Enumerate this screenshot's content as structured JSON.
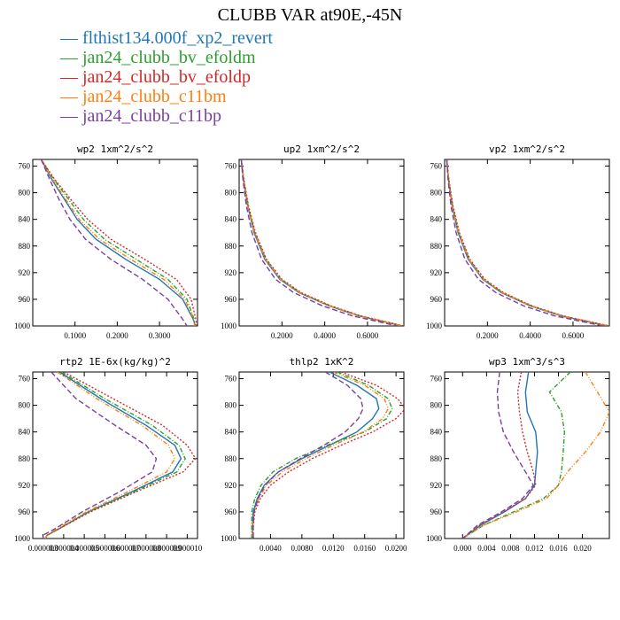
{
  "figure": {
    "title": "CLUBB VAR at90E,-45N",
    "legend": [
      {
        "label": "flthist134.000f_xp2_revert",
        "color": "#1f77b4"
      },
      {
        "label": "jan24_clubb_bv_efoldm",
        "color": "#2ca02c"
      },
      {
        "label": "jan24_clubb_bv_efoldp",
        "color": "#d62728"
      },
      {
        "label": "jan24_clubb_c11bm",
        "color": "#ff7f0e"
      },
      {
        "label": "jan24_clubb_c11bp",
        "color": "#7b3fa0"
      }
    ]
  },
  "chart_data": [
    {
      "type": "line",
      "title": "wp2  1xm^2/s^2",
      "xlim": [
        0.0,
        0.39
      ],
      "ylim": [
        1000,
        750
      ],
      "xticks": [
        "0.1000",
        "0.2000",
        "0.3000"
      ],
      "xtick_values": [
        0.1,
        0.2,
        0.3
      ],
      "yticks": [
        "760",
        "800",
        "840",
        "880",
        "920",
        "960",
        "1000"
      ],
      "y": [
        750,
        780,
        810,
        840,
        870,
        900,
        930,
        960,
        990,
        1000
      ],
      "series": [
        {
          "name": "flthist134.000f_xp2_revert",
          "color": "#1f77b4",
          "values": [
            0.02,
            0.045,
            0.075,
            0.105,
            0.15,
            0.22,
            0.3,
            0.355,
            0.38,
            0.385
          ]
        },
        {
          "name": "jan24_clubb_bv_efoldm",
          "color": "#2ca02c",
          "values": [
            0.02,
            0.05,
            0.085,
            0.12,
            0.17,
            0.245,
            0.32,
            0.365,
            0.382,
            0.384
          ]
        },
        {
          "name": "jan24_clubb_bv_efoldp",
          "color": "#d62728",
          "values": [
            0.02,
            0.052,
            0.09,
            0.13,
            0.185,
            0.265,
            0.34,
            0.375,
            0.386,
            0.388
          ]
        },
        {
          "name": "jan24_clubb_c11bm",
          "color": "#ff7f0e",
          "values": [
            0.02,
            0.047,
            0.078,
            0.11,
            0.158,
            0.232,
            0.31,
            0.36,
            0.381,
            0.383
          ]
        },
        {
          "name": "jan24_clubb_c11bp",
          "color": "#7b3fa0",
          "values": [
            0.02,
            0.04,
            0.062,
            0.088,
            0.125,
            0.185,
            0.26,
            0.32,
            0.355,
            0.365
          ]
        }
      ]
    },
    {
      "type": "line",
      "title": "up2  1xm^2/s^2",
      "xlim": [
        0.0,
        0.77
      ],
      "ylim": [
        1000,
        750
      ],
      "xticks": [
        "0.2000",
        "0.4000",
        "0.6000"
      ],
      "xtick_values": [
        0.2,
        0.4,
        0.6
      ],
      "yticks": [
        "760",
        "800",
        "840",
        "880",
        "920",
        "960",
        "1000"
      ],
      "y": [
        750,
        780,
        820,
        860,
        900,
        930,
        950,
        970,
        985,
        1000
      ],
      "series": [
        {
          "name": "flthist134.000f_xp2_revert",
          "color": "#1f77b4",
          "values": [
            0.01,
            0.02,
            0.04,
            0.07,
            0.12,
            0.19,
            0.28,
            0.42,
            0.56,
            0.76
          ]
        },
        {
          "name": "jan24_clubb_bv_efoldm",
          "color": "#2ca02c",
          "values": [
            0.01,
            0.021,
            0.042,
            0.073,
            0.125,
            0.195,
            0.285,
            0.425,
            0.565,
            0.765
          ]
        },
        {
          "name": "jan24_clubb_bv_efoldp",
          "color": "#d62728",
          "values": [
            0.01,
            0.022,
            0.044,
            0.076,
            0.128,
            0.2,
            0.29,
            0.43,
            0.57,
            0.77
          ]
        },
        {
          "name": "jan24_clubb_c11bm",
          "color": "#ff7f0e",
          "values": [
            0.01,
            0.021,
            0.041,
            0.072,
            0.122,
            0.193,
            0.283,
            0.422,
            0.562,
            0.762
          ]
        },
        {
          "name": "jan24_clubb_c11bp",
          "color": "#7b3fa0",
          "values": [
            0.01,
            0.018,
            0.034,
            0.06,
            0.105,
            0.17,
            0.255,
            0.39,
            0.53,
            0.74
          ]
        }
      ]
    },
    {
      "type": "line",
      "title": "vp2  1xm^2/s^2",
      "xlim": [
        0.0,
        0.77
      ],
      "ylim": [
        1000,
        750
      ],
      "xticks": [
        "0.2000",
        "0.4000",
        "0.6000"
      ],
      "xtick_values": [
        0.2,
        0.4,
        0.6
      ],
      "yticks": [
        "760",
        "800",
        "840",
        "880",
        "920",
        "960",
        "1000"
      ],
      "y": [
        750,
        780,
        820,
        860,
        900,
        930,
        950,
        970,
        985,
        1000
      ],
      "series": [
        {
          "name": "flthist134.000f_xp2_revert",
          "color": "#1f77b4",
          "values": [
            0.01,
            0.018,
            0.035,
            0.063,
            0.11,
            0.178,
            0.265,
            0.4,
            0.545,
            0.76
          ]
        },
        {
          "name": "jan24_clubb_bv_efoldm",
          "color": "#2ca02c",
          "values": [
            0.01,
            0.019,
            0.037,
            0.066,
            0.115,
            0.183,
            0.27,
            0.405,
            0.55,
            0.765
          ]
        },
        {
          "name": "jan24_clubb_bv_efoldp",
          "color": "#d62728",
          "values": [
            0.01,
            0.02,
            0.039,
            0.069,
            0.118,
            0.188,
            0.275,
            0.41,
            0.555,
            0.77
          ]
        },
        {
          "name": "jan24_clubb_c11bm",
          "color": "#ff7f0e",
          "values": [
            0.01,
            0.019,
            0.036,
            0.065,
            0.112,
            0.181,
            0.268,
            0.403,
            0.548,
            0.762
          ]
        },
        {
          "name": "jan24_clubb_c11bp",
          "color": "#7b3fa0",
          "values": [
            0.01,
            0.016,
            0.03,
            0.054,
            0.095,
            0.158,
            0.24,
            0.37,
            0.515,
            0.74
          ]
        }
      ]
    },
    {
      "type": "line",
      "title": "rtp2  1E-6x(kg/kg)^2",
      "xlim": [
        2.5e-06,
        1.05e-05
      ],
      "ylim": [
        1000,
        750
      ],
      "xticks": [
        "0.000003",
        "0.000004",
        "0.000005",
        "0.000006",
        "0.000007",
        "0.000008",
        "0.000009",
        "0.000010"
      ],
      "xtick_values": [
        3e-06,
        4e-06,
        5e-06,
        6e-06,
        7e-06,
        8e-06,
        9e-06,
        1e-05
      ],
      "yticks": [
        "760",
        "800",
        "840",
        "880",
        "920",
        "960",
        "1000"
      ],
      "y": [
        750,
        790,
        830,
        860,
        880,
        900,
        930,
        960,
        985,
        995,
        1000
      ],
      "series": [
        {
          "name": "flthist134.000f_xp2_revert",
          "color": "#1f77b4",
          "values": [
            3.8e-06,
            5.8e-06,
            8e-06,
            9.4e-06,
            9.7e-06,
            9.3e-06,
            7.3e-06,
            5.2e-06,
            3.8e-06,
            3.2e-06,
            3.1e-06
          ]
        },
        {
          "name": "jan24_clubb_bv_efoldm",
          "color": "#2ca02c",
          "values": [
            3.9e-06,
            6e-06,
            8.3e-06,
            9.6e-06,
            9.9e-06,
            9.5e-06,
            7.4e-06,
            5.2e-06,
            3.8e-06,
            3.2e-06,
            3.1e-06
          ]
        },
        {
          "name": "jan24_clubb_bv_efoldp",
          "color": "#d62728",
          "values": [
            4e-06,
            6.4e-06,
            8.8e-06,
            1e-05,
            1.04e-05,
            9.8e-06,
            7.5e-06,
            5.3e-06,
            3.8e-06,
            3.2e-06,
            3.1e-06
          ]
        },
        {
          "name": "jan24_clubb_c11bm",
          "color": "#ff7f0e",
          "values": [
            3.7e-06,
            5.6e-06,
            7.8e-06,
            9.1e-06,
            9.4e-06,
            9e-06,
            7.1e-06,
            5.1e-06,
            3.7e-06,
            3.2e-06,
            3.1e-06
          ]
        },
        {
          "name": "jan24_clubb_c11bp",
          "color": "#7b3fa0",
          "values": [
            3.4e-06,
            4.6e-06,
            6.5e-06,
            8e-06,
            8.5e-06,
            8.3e-06,
            6.7e-06,
            4.9e-06,
            3.6e-06,
            3e-06,
            3e-06
          ]
        }
      ]
    },
    {
      "type": "line",
      "title": "thlp2  1xK^2",
      "xlim": [
        0.0,
        0.021
      ],
      "ylim": [
        1000,
        750
      ],
      "xticks": [
        "0.0040",
        "0.0080",
        "0.0120",
        "0.0160",
        "0.0200"
      ],
      "xtick_values": [
        0.004,
        0.008,
        0.012,
        0.016,
        0.02
      ],
      "yticks": [
        "760",
        "800",
        "840",
        "880",
        "920",
        "960",
        "1000"
      ],
      "y": [
        750,
        770,
        790,
        805,
        820,
        840,
        860,
        880,
        900,
        920,
        940,
        960,
        980,
        1000
      ],
      "series": [
        {
          "name": "flthist134.000f_xp2_revert",
          "color": "#1f77b4",
          "values": [
            0.0115,
            0.015,
            0.0175,
            0.0178,
            0.017,
            0.015,
            0.0115,
            0.008,
            0.005,
            0.0032,
            0.0023,
            0.0018,
            0.0017,
            0.0017
          ]
        },
        {
          "name": "jan24_clubb_bv_efoldm",
          "color": "#2ca02c",
          "values": [
            0.0125,
            0.0165,
            0.019,
            0.0195,
            0.0188,
            0.016,
            0.0112,
            0.0072,
            0.0043,
            0.0028,
            0.002,
            0.0016,
            0.0016,
            0.0016
          ]
        },
        {
          "name": "jan24_clubb_bv_efoldp",
          "color": "#d62728",
          "values": [
            0.013,
            0.0175,
            0.0202,
            0.0212,
            0.02,
            0.017,
            0.013,
            0.0093,
            0.0063,
            0.004,
            0.0027,
            0.002,
            0.0018,
            0.0018
          ]
        },
        {
          "name": "jan24_clubb_c11bm",
          "color": "#ff7f0e",
          "values": [
            0.012,
            0.016,
            0.0185,
            0.019,
            0.0183,
            0.0158,
            0.012,
            0.0085,
            0.0055,
            0.0035,
            0.0025,
            0.0019,
            0.0017,
            0.0017
          ]
        },
        {
          "name": "jan24_clubb_c11bp",
          "color": "#7b3fa0",
          "values": [
            0.011,
            0.0138,
            0.0155,
            0.0158,
            0.0152,
            0.0135,
            0.0108,
            0.0078,
            0.005,
            0.0033,
            0.0024,
            0.0019,
            0.0018,
            0.0018
          ]
        }
      ]
    },
    {
      "type": "line",
      "title": "wp3  1xm^3/s^3",
      "xlim": [
        -0.003,
        0.0245
      ],
      "ylim": [
        1000,
        750
      ],
      "xticks": [
        "0.000",
        "0.004",
        "0.008",
        "0.012",
        "0.016",
        "0.020"
      ],
      "xtick_values": [
        0.0,
        0.004,
        0.008,
        0.012,
        0.016,
        0.02
      ],
      "yticks": [
        "760",
        "800",
        "840",
        "880",
        "920",
        "960",
        "1000"
      ],
      "y": [
        750,
        780,
        810,
        840,
        870,
        900,
        920,
        940,
        960,
        980,
        1000
      ],
      "series": [
        {
          "name": "flthist134.000f_xp2_revert",
          "color": "#1f77b4",
          "values": [
            0.011,
            0.0105,
            0.0108,
            0.0122,
            0.0125,
            0.0122,
            0.012,
            0.0105,
            0.007,
            0.003,
            0.0
          ]
        },
        {
          "name": "jan24_clubb_bv_efoldm",
          "color": "#2ca02c",
          "values": [
            0.018,
            0.0145,
            0.0165,
            0.017,
            0.0168,
            0.0165,
            0.016,
            0.0135,
            0.0085,
            0.0035,
            0.0
          ]
        },
        {
          "name": "jan24_clubb_bv_efoldp",
          "color": "#d62728",
          "values": [
            0.0098,
            0.0092,
            0.0095,
            0.01,
            0.0108,
            0.0118,
            0.0122,
            0.0105,
            0.0068,
            0.0028,
            0.0
          ]
        },
        {
          "name": "jan24_clubb_c11bm",
          "color": "#ff7f0e",
          "values": [
            0.0205,
            0.0225,
            0.0245,
            0.023,
            0.0205,
            0.0175,
            0.016,
            0.014,
            0.009,
            0.0035,
            0.0
          ]
        },
        {
          "name": "jan24_clubb_c11bp",
          "color": "#7b3fa0",
          "values": [
            0.0062,
            0.0058,
            0.006,
            0.0068,
            0.0085,
            0.0105,
            0.0118,
            0.01,
            0.0065,
            0.0025,
            0.0
          ]
        }
      ]
    }
  ]
}
